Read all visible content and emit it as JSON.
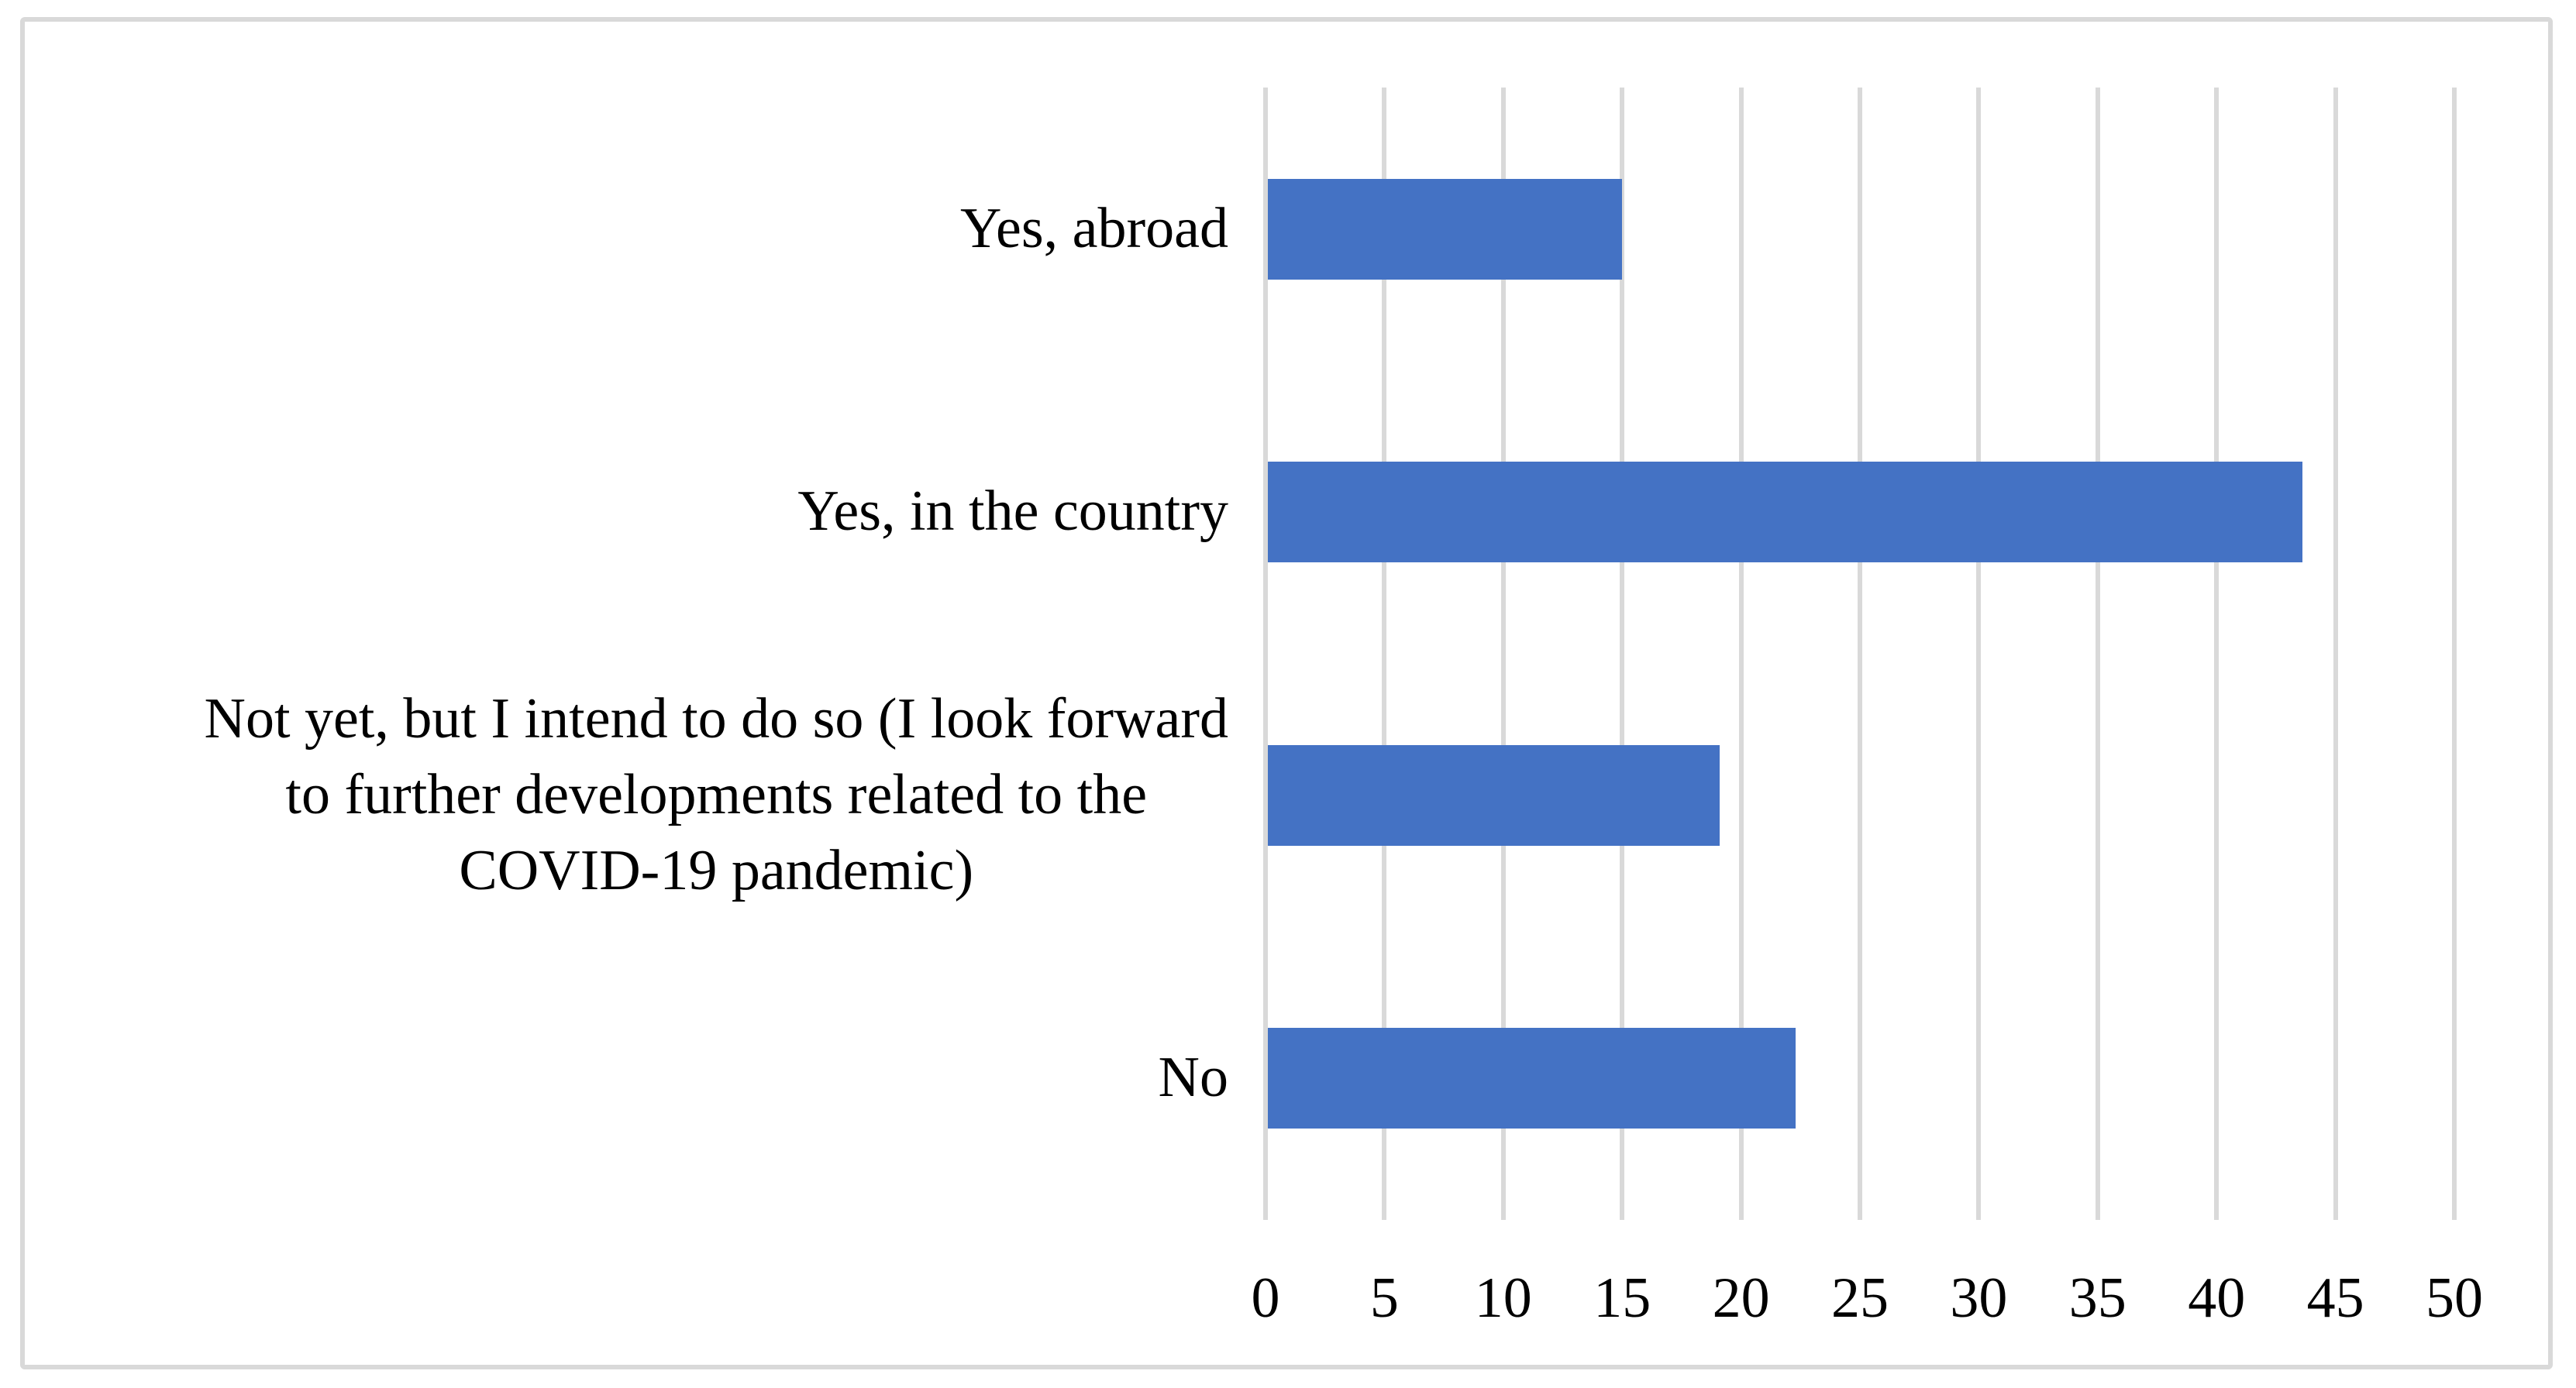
{
  "chart_data": {
    "type": "bar",
    "orientation": "horizontal",
    "title": "",
    "xlabel": "",
    "ylabel": "",
    "categories": [
      "Yes, abroad",
      "Yes, in the country",
      "Not yet, but I intend to do so (I look forward to further developments related to the COVID-19 pandemic)",
      "No"
    ],
    "label_lines": [
      [
        "Yes, abroad"
      ],
      [
        "Yes, in the country"
      ],
      [
        "Not yet, but I intend to do so (I look forward",
        "to further developments related to the",
        "COVID-19 pandemic)"
      ],
      [
        "No"
      ]
    ],
    "values": [
      15,
      43.6,
      19.1,
      22.3
    ],
    "x_ticks": [
      0,
      5,
      10,
      15,
      20,
      25,
      30,
      35,
      40,
      45,
      50
    ],
    "xlim": [
      0,
      50
    ],
    "grid": "vertical",
    "legend": "none",
    "colors": {
      "bar": "#4472C4",
      "gridline": "#D9D9D9",
      "frame_border": "#D9D9D9",
      "background": "#FFFFFF",
      "text": "#000000"
    }
  }
}
